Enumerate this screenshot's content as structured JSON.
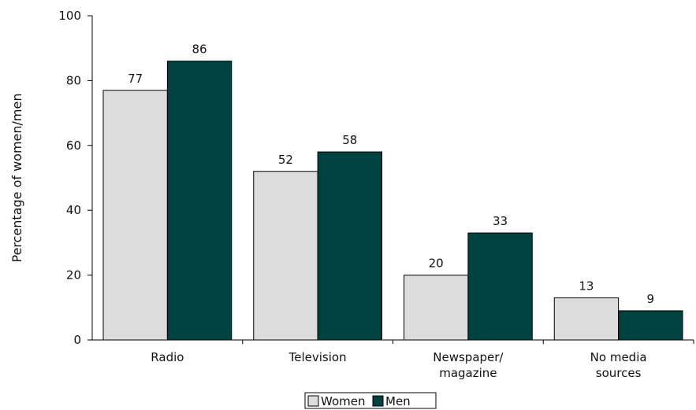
{
  "chart_data": {
    "type": "bar",
    "categories": [
      [
        "Radio"
      ],
      [
        "Television"
      ],
      [
        "Newspaper/",
        "magazine"
      ],
      [
        "No media",
        "sources"
      ]
    ],
    "series": [
      {
        "name": "Women",
        "values": [
          77,
          52,
          20,
          13
        ],
        "color": "#dcdcdc"
      },
      {
        "name": "Men",
        "values": [
          86,
          58,
          33,
          9
        ],
        "color": "#00423f"
      }
    ],
    "ylabel": "Percentage of women/men",
    "xlabel": "",
    "ylim": [
      0,
      100
    ],
    "yticks": [
      0,
      20,
      40,
      60,
      80,
      100
    ],
    "grid": false,
    "legend_position": "bottom"
  }
}
